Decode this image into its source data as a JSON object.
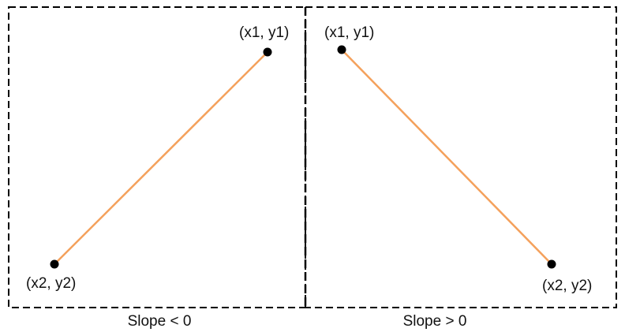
{
  "panels": [
    {
      "caption": "Slope < 0",
      "point_top_label": "(x1, y1)",
      "point_bottom_label": "(x2, y2)"
    },
    {
      "caption": "Slope > 0",
      "point_top_label": "(x1, y1)",
      "point_bottom_label": "(x2, y2)"
    }
  ],
  "colors": {
    "line": "#F4A15C",
    "point": "#000000",
    "border": "#000000"
  }
}
